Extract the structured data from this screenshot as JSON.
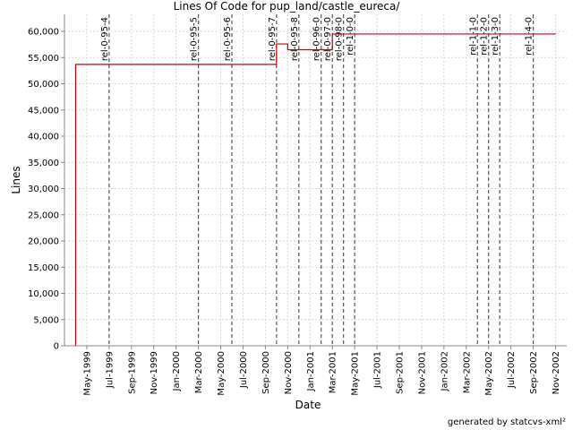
{
  "chart_data": {
    "type": "line",
    "step": true,
    "title": "Lines Of Code for pup_land/castle_eureca/",
    "x_label": "Date",
    "y_label": "Lines",
    "footer": "generated by statcvs-xml²",
    "color": "#cc0000",
    "x": [
      "Apr-1999",
      "Apr-1999",
      "Oct-2000",
      "Nov-2000",
      "Mar-2001",
      "Nov-2002"
    ],
    "values": [
      0,
      53700,
      57600,
      56500,
      59500,
      59500
    ],
    "markers": [
      {
        "label": "rel-0-95-4",
        "x": "Jul-1999"
      },
      {
        "label": "rel-0-95-5",
        "x": "Mar-2000"
      },
      {
        "label": "rel-0-95-6",
        "x": "Jun-2000"
      },
      {
        "label": "rel-0-95-7",
        "x": "Oct-2000"
      },
      {
        "label": "rel-0-95-8",
        "x": "Dec-2000"
      },
      {
        "label": "rel-0-96-0",
        "x": "Feb-2001"
      },
      {
        "label": "rel-0-97-0",
        "x": "Mar-2001"
      },
      {
        "label": "rel-0-98-0",
        "x": "Apr-2001"
      },
      {
        "label": "rel-1-0-0",
        "x": "May-2001"
      },
      {
        "label": "rel-1-1-0",
        "x": "Apr-2002"
      },
      {
        "label": "rel-1-2-0",
        "x": "May-2002"
      },
      {
        "label": "rel-1-3-0",
        "x": "Jun-2002"
      },
      {
        "label": "rel-1-4-0",
        "x": "Sep-2002"
      }
    ],
    "marker_color": "#555555",
    "xlim": [
      "Mar-1999",
      "Dec-2002"
    ],
    "xticks": [
      "May-1999",
      "Jul-1999",
      "Sep-1999",
      "Nov-1999",
      "Jan-2000",
      "Mar-2000",
      "May-2000",
      "Jul-2000",
      "Sep-2000",
      "Nov-2000",
      "Jan-2001",
      "Mar-2001",
      "May-2001",
      "Jul-2001",
      "Sep-2001",
      "Nov-2001",
      "Jan-2002",
      "Mar-2002",
      "May-2002",
      "Jul-2002",
      "Sep-2002",
      "Nov-2002"
    ],
    "ylim": [
      0,
      63250
    ],
    "yticks": [
      0,
      {
        "value": 5000,
        "label": "5,000"
      },
      {
        "value": 10000,
        "label": "10,000"
      },
      {
        "value": 15000,
        "label": "15,000"
      },
      {
        "value": 20000,
        "label": "20,000"
      },
      {
        "value": 25000,
        "label": "25,000"
      },
      {
        "value": 30000,
        "label": "30,000"
      },
      {
        "value": 35000,
        "label": "35,000"
      },
      {
        "value": 40000,
        "label": "40,000"
      },
      {
        "value": 45000,
        "label": "45,000"
      },
      {
        "value": 50000,
        "label": "50,000"
      },
      {
        "value": 55000,
        "label": "55,000"
      },
      {
        "value": 60000,
        "label": "60,000"
      }
    ],
    "grid": true
  }
}
